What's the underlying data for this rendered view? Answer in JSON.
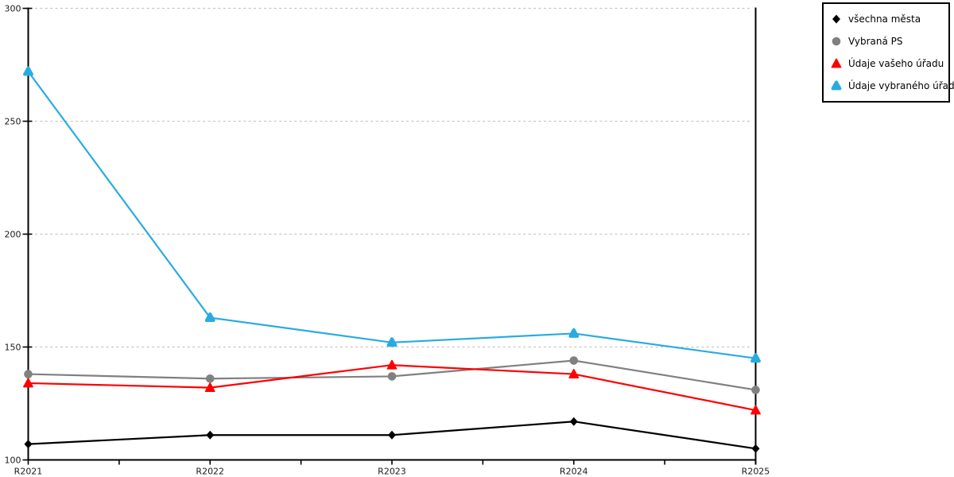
{
  "chart_data": {
    "type": "line",
    "categories": [
      "R2021",
      "R2022",
      "R2023",
      "R2024",
      "R2025"
    ],
    "series": [
      {
        "name": "všechna města",
        "marker": "diamond",
        "color": "#000000",
        "values": [
          107,
          111,
          111,
          117,
          105
        ]
      },
      {
        "name": "Vybraná PS",
        "marker": "circle",
        "color": "#808080",
        "values": [
          138,
          136,
          137,
          144,
          131
        ]
      },
      {
        "name": "Údaje vašeho úřadu",
        "marker": "triangle",
        "color": "#FF0000",
        "values": [
          134,
          132,
          142,
          138,
          122
        ]
      },
      {
        "name": "Údaje vybraného úřadu",
        "marker": "triangle-rounded",
        "color": "#29ABE2",
        "values": [
          272,
          163,
          152,
          156,
          145
        ]
      }
    ],
    "title": "",
    "xlabel": "",
    "ylabel": "",
    "ylim": [
      100,
      300
    ],
    "yticks": [
      100,
      150,
      200,
      250,
      300
    ],
    "ytick_labels": [
      "100",
      "150",
      "200",
      "250",
      "300"
    ],
    "grid": "horizontal-dashed",
    "gridline_color": "#C6C6C6",
    "axis_color": "#000000",
    "axis_label_color": "#1A1A1A",
    "legend_position": "top-right",
    "legend_border_color": "#000000"
  }
}
